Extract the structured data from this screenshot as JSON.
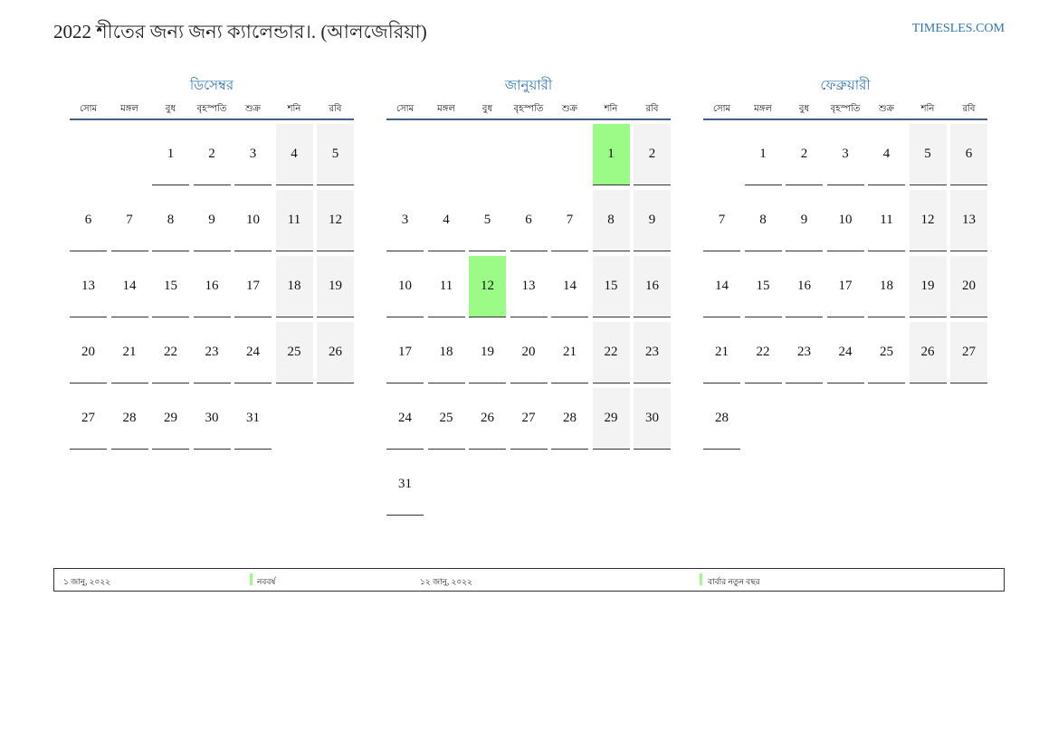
{
  "header": {
    "title": "2022 শীতের জন্য জন্য ক্যালেন্ডার।. (আলজেরিয়া)",
    "site": "TIMESLES.COM"
  },
  "weekdays": [
    "সোম",
    "মঙ্গল",
    "বুধ",
    "বৃহস্পতি",
    "শুক্র",
    "শনি",
    "রবি"
  ],
  "colors": {
    "accent": "#2e74b5",
    "holiday": "#9cfb86",
    "weekend": "#f3f3f3"
  },
  "months": [
    {
      "name": "ডিসেম্বর",
      "start_weekday_index": 2,
      "days": [
        "1",
        "2",
        "3",
        "4",
        "5",
        "6",
        "7",
        "8",
        "9",
        "10",
        "11",
        "12",
        "13",
        "14",
        "15",
        "16",
        "17",
        "18",
        "19",
        "20",
        "21",
        "22",
        "23",
        "24",
        "25",
        "26",
        "27",
        "28",
        "29",
        "30",
        "31"
      ],
      "holidays": []
    },
    {
      "name": "জানুয়ারী",
      "start_weekday_index": 5,
      "days": [
        "1",
        "2",
        "3",
        "4",
        "5",
        "6",
        "7",
        "8",
        "9",
        "10",
        "11",
        "12",
        "13",
        "14",
        "15",
        "16",
        "17",
        "18",
        "19",
        "20",
        "21",
        "22",
        "23",
        "24",
        "25",
        "26",
        "27",
        "28",
        "29",
        "30",
        "31"
      ],
      "holidays": [
        "1",
        "12"
      ]
    },
    {
      "name": "ফেব্রুয়ারী",
      "start_weekday_index": 1,
      "days": [
        "1",
        "2",
        "3",
        "4",
        "5",
        "6",
        "7",
        "8",
        "9",
        "10",
        "11",
        "12",
        "13",
        "14",
        "15",
        "16",
        "17",
        "18",
        "19",
        "20",
        "21",
        "22",
        "23",
        "24",
        "25",
        "26",
        "27",
        "28"
      ],
      "holidays": []
    }
  ],
  "footer": [
    {
      "date": "১ জানু, ২০২২",
      "name": "নববর্ষ"
    },
    {
      "date": "১২ জানু, ২০২২",
      "name": "বার্বার নতুন বছর"
    }
  ]
}
